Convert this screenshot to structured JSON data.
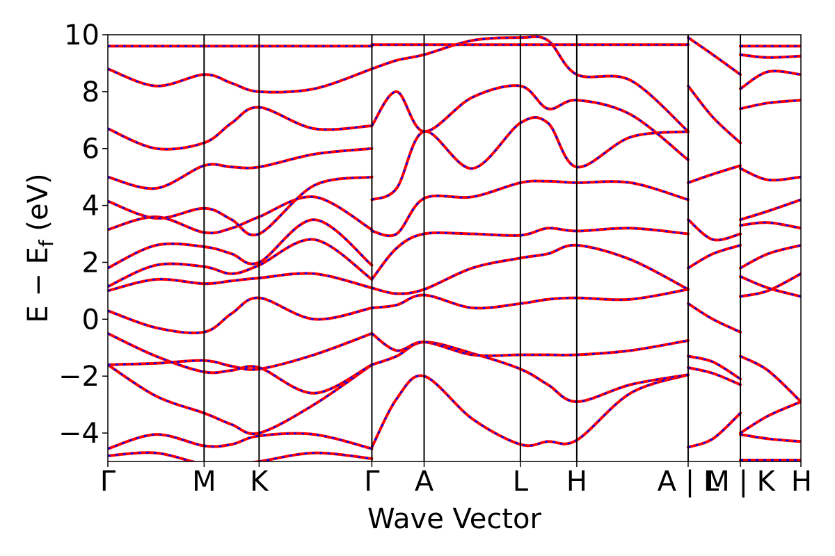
{
  "chart_data": {
    "type": "line",
    "title": "",
    "xlabel": "Wave Vector",
    "ylabel_main": "E − E",
    "ylabel_sub": "f",
    "ylabel_unit": " (eV)",
    "ylim": [
      -5,
      10
    ],
    "yticks": [
      -4,
      -2,
      0,
      2,
      4,
      6,
      8,
      10
    ],
    "ytick_labels": [
      "−4",
      "−2",
      "0",
      "2",
      "4",
      "6",
      "8",
      "10"
    ],
    "x_range": [
      0,
      5.04
    ],
    "kpoints": [
      {
        "label": "Γ",
        "x": 0.0
      },
      {
        "label": "M",
        "x": 0.7
      },
      {
        "label": "K",
        "x": 1.1
      },
      {
        "label": "Γ",
        "x": 1.92
      },
      {
        "label": "A",
        "x": 2.3
      },
      {
        "label": "L",
        "x": 3.0
      },
      {
        "label": "H",
        "x": 3.41
      },
      {
        "label": "A | L",
        "x": 4.22
      },
      {
        "label": "M | K",
        "x": 4.6
      },
      {
        "label": "H",
        "x": 5.04
      }
    ],
    "series": [
      {
        "color": "#ff0000",
        "style": "solid"
      },
      {
        "color": "#0000ff",
        "style": "dashed"
      }
    ],
    "bands": [
      {
        "x": [
          0,
          0.35,
          0.7,
          0.9,
          1.1,
          1.5,
          1.92
        ],
        "y": [
          -4.8,
          -4.7,
          -5.1,
          -5.1,
          -5.0,
          -4.7,
          -4.9
        ]
      },
      {
        "x": [
          0,
          0.35,
          0.7,
          0.9,
          1.1,
          1.5,
          1.92
        ],
        "y": [
          -4.55,
          -4.05,
          -4.45,
          -4.4,
          -4.1,
          -4.05,
          -4.55
        ]
      },
      {
        "x": [
          0,
          0.35,
          0.7,
          0.9,
          1.1,
          1.5,
          1.92
        ],
        "y": [
          -1.6,
          -2.7,
          -3.3,
          -3.7,
          -4.0,
          -3.0,
          -1.6
        ]
      },
      {
        "x": [
          0,
          0.35,
          0.7,
          0.9,
          1.1,
          1.5,
          1.92
        ],
        "y": [
          -1.6,
          -1.55,
          -1.45,
          -1.65,
          -1.75,
          -1.25,
          -0.5
        ]
      },
      {
        "x": [
          0,
          0.35,
          0.7,
          0.9,
          1.1,
          1.5,
          1.92
        ],
        "y": [
          -0.5,
          -1.3,
          -1.85,
          -1.8,
          -1.7,
          -2.6,
          -1.6
        ]
      },
      {
        "x": [
          0,
          0.35,
          0.7,
          0.9,
          1.1,
          1.5,
          1.92
        ],
        "y": [
          0.3,
          -0.3,
          -0.45,
          0.2,
          0.75,
          0.0,
          0.4
        ]
      },
      {
        "x": [
          0,
          0.35,
          0.7,
          0.9,
          1.1,
          1.5,
          1.92
        ],
        "y": [
          1.0,
          1.4,
          1.25,
          1.35,
          1.45,
          1.6,
          1.1
        ]
      },
      {
        "x": [
          0,
          0.35,
          0.7,
          0.9,
          1.1,
          1.5,
          1.92
        ],
        "y": [
          1.15,
          1.9,
          1.85,
          1.6,
          1.9,
          2.8,
          1.4
        ]
      },
      {
        "x": [
          0,
          0.35,
          0.7,
          0.9,
          1.1,
          1.5,
          1.92
        ],
        "y": [
          1.8,
          2.6,
          2.55,
          2.3,
          2.0,
          3.5,
          1.9
        ]
      },
      {
        "x": [
          0,
          0.35,
          0.7,
          0.9,
          1.1,
          1.5,
          1.92
        ],
        "y": [
          3.15,
          3.6,
          3.05,
          3.2,
          3.6,
          4.3,
          3.15
        ]
      },
      {
        "x": [
          0,
          0.35,
          0.7,
          0.9,
          1.1,
          1.5,
          1.92
        ],
        "y": [
          4.15,
          3.55,
          3.9,
          3.5,
          3.0,
          4.7,
          5.0
        ]
      },
      {
        "x": [
          0,
          0.35,
          0.7,
          0.9,
          1.1,
          1.5,
          1.92
        ],
        "y": [
          5.0,
          4.6,
          5.4,
          5.35,
          5.35,
          5.8,
          6.0
        ]
      },
      {
        "x": [
          0,
          0.35,
          0.7,
          0.9,
          1.1,
          1.5,
          1.92
        ],
        "y": [
          6.7,
          6.0,
          6.2,
          6.9,
          7.45,
          6.7,
          6.8
        ]
      },
      {
        "x": [
          0,
          0.35,
          0.7,
          0.9,
          1.1,
          1.5,
          1.92
        ],
        "y": [
          8.8,
          8.2,
          8.6,
          8.3,
          8.0,
          8.1,
          8.8
        ]
      },
      {
        "x": [
          0,
          0.35,
          0.7,
          0.9,
          1.1,
          1.5,
          1.92
        ],
        "y": [
          9.6,
          9.6,
          9.6,
          9.6,
          9.6,
          9.6,
          9.6
        ]
      },
      {
        "x": [
          1.92,
          2.1,
          2.3,
          2.65,
          3.0,
          3.2,
          3.41,
          3.8,
          4.22
        ],
        "y": [
          -4.5,
          -2.8,
          -2.0,
          -3.5,
          -4.4,
          -4.3,
          -4.25,
          -2.6,
          -1.95
        ]
      },
      {
        "x": [
          1.92,
          2.1,
          2.3,
          2.65,
          3.0,
          3.2,
          3.41,
          3.8,
          4.22
        ],
        "y": [
          -1.6,
          -1.3,
          -0.8,
          -1.2,
          -1.75,
          -2.3,
          -2.9,
          -2.3,
          -1.95
        ]
      },
      {
        "x": [
          1.92,
          2.1,
          2.3,
          2.65,
          3.0,
          3.2,
          3.41,
          3.8,
          4.22
        ],
        "y": [
          -0.5,
          -1.1,
          -0.8,
          -1.25,
          -1.25,
          -1.25,
          -1.25,
          -1.1,
          -0.75
        ]
      },
      {
        "x": [
          1.92,
          2.1,
          2.3,
          2.65,
          3.0,
          3.2,
          3.41,
          3.8,
          4.22
        ],
        "y": [
          0.4,
          0.5,
          0.85,
          0.4,
          0.55,
          0.7,
          0.75,
          0.7,
          1.05
        ]
      },
      {
        "x": [
          1.92,
          2.1,
          2.3,
          2.65,
          3.0,
          3.2,
          3.41,
          3.8,
          4.22
        ],
        "y": [
          1.1,
          0.9,
          1.05,
          1.8,
          2.15,
          2.3,
          2.6,
          2.1,
          1.05
        ]
      },
      {
        "x": [
          1.92,
          2.1,
          2.3,
          2.65,
          3.0,
          3.2,
          3.41,
          3.8,
          4.22
        ],
        "y": [
          1.4,
          2.5,
          3.0,
          3.0,
          2.95,
          3.2,
          3.1,
          3.2,
          3.0
        ]
      },
      {
        "x": [
          1.92,
          2.1,
          2.3,
          2.65,
          3.0,
          3.2,
          3.41,
          3.8,
          4.22
        ],
        "y": [
          3.1,
          3.0,
          4.25,
          4.3,
          4.8,
          4.85,
          4.8,
          4.8,
          4.2
        ]
      },
      {
        "x": [
          1.92,
          2.1,
          2.3,
          2.65,
          3.0,
          3.2,
          3.41,
          3.8,
          4.22
        ],
        "y": [
          4.2,
          4.6,
          6.6,
          5.3,
          6.9,
          6.9,
          5.35,
          6.4,
          6.6
        ]
      },
      {
        "x": [
          1.92,
          2.1,
          2.3,
          2.65,
          3.0,
          3.2,
          3.41,
          3.8,
          4.22
        ],
        "y": [
          6.8,
          8.0,
          6.6,
          7.8,
          8.2,
          7.4,
          7.7,
          7.2,
          5.6
        ]
      },
      {
        "x": [
          1.92,
          2.1,
          2.3,
          2.65,
          3.0,
          3.2,
          3.41,
          3.8,
          4.22
        ],
        "y": [
          8.8,
          9.1,
          9.3,
          9.8,
          9.9,
          9.8,
          8.6,
          8.4,
          6.6
        ]
      },
      {
        "x": [
          1.92,
          2.1,
          2.3,
          2.65,
          3.0,
          3.2,
          3.41,
          3.8,
          4.22
        ],
        "y": [
          9.65,
          9.65,
          9.65,
          9.65,
          9.65,
          9.65,
          9.65,
          9.65,
          9.65
        ]
      },
      {
        "x": [
          4.22,
          4.4,
          4.6
        ],
        "y": [
          -4.5,
          -4.2,
          -3.3
        ]
      },
      {
        "x": [
          4.22,
          4.4,
          4.6
        ],
        "y": [
          -1.7,
          -1.9,
          -2.3
        ]
      },
      {
        "x": [
          4.22,
          4.4,
          4.6
        ],
        "y": [
          -1.3,
          -1.5,
          -2.1
        ]
      },
      {
        "x": [
          4.22,
          4.4,
          4.6
        ],
        "y": [
          0.55,
          0.0,
          -0.45
        ]
      },
      {
        "x": [
          4.22,
          4.4,
          4.6
        ],
        "y": [
          1.8,
          2.3,
          2.6
        ]
      },
      {
        "x": [
          4.22,
          4.4,
          4.6
        ],
        "y": [
          3.5,
          2.8,
          3.0
        ]
      },
      {
        "x": [
          4.22,
          4.4,
          4.6
        ],
        "y": [
          4.8,
          5.1,
          5.4
        ]
      },
      {
        "x": [
          4.22,
          4.4,
          4.6
        ],
        "y": [
          8.2,
          7.1,
          6.2
        ]
      },
      {
        "x": [
          4.22,
          4.4,
          4.6
        ],
        "y": [
          9.9,
          9.3,
          8.6
        ]
      },
      {
        "x": [
          4.6,
          4.8,
          5.04
        ],
        "y": [
          -4.0,
          -3.4,
          -2.9
        ]
      },
      {
        "x": [
          4.6,
          4.8,
          5.04
        ],
        "y": [
          -4.05,
          -4.2,
          -4.3
        ]
      },
      {
        "x": [
          4.6,
          4.8,
          5.04
        ],
        "y": [
          -4.95,
          -4.95,
          -4.95
        ]
      },
      {
        "x": [
          4.6,
          4.8,
          5.04
        ],
        "y": [
          -1.3,
          -1.8,
          -2.9
        ]
      },
      {
        "x": [
          4.6,
          4.8,
          5.04
        ],
        "y": [
          0.8,
          1.0,
          1.6
        ]
      },
      {
        "x": [
          4.6,
          4.8,
          5.04
        ],
        "y": [
          1.5,
          1.1,
          0.8
        ]
      },
      {
        "x": [
          4.6,
          4.8,
          5.04
        ],
        "y": [
          1.8,
          2.3,
          2.6
        ]
      },
      {
        "x": [
          4.6,
          4.8,
          5.04
        ],
        "y": [
          3.3,
          3.4,
          3.2
        ]
      },
      {
        "x": [
          4.6,
          4.8,
          5.04
        ],
        "y": [
          3.5,
          3.8,
          4.2
        ]
      },
      {
        "x": [
          4.6,
          4.8,
          5.04
        ],
        "y": [
          5.3,
          4.9,
          5.0
        ]
      },
      {
        "x": [
          4.6,
          4.8,
          5.04
        ],
        "y": [
          7.4,
          7.6,
          7.7
        ]
      },
      {
        "x": [
          4.6,
          4.8,
          5.04
        ],
        "y": [
          8.1,
          8.7,
          8.6
        ]
      },
      {
        "x": [
          4.6,
          4.8,
          5.04
        ],
        "y": [
          9.6,
          9.6,
          9.6
        ]
      },
      {
        "x": [
          4.6,
          4.8,
          5.04
        ],
        "y": [
          9.3,
          9.2,
          9.25
        ]
      }
    ]
  }
}
